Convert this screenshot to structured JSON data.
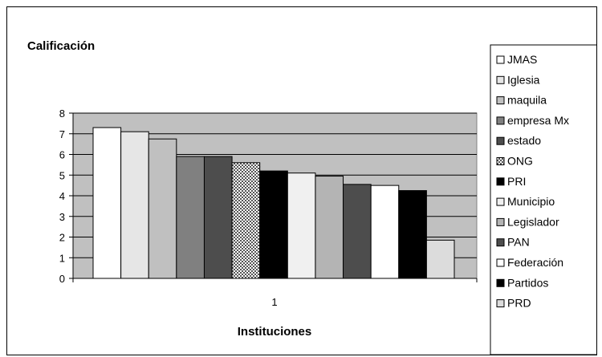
{
  "chart_data": {
    "type": "bar",
    "title": "Calificación",
    "xlabel": "Instituciones",
    "ylabel": "",
    "categories": [
      "1"
    ],
    "ylim": [
      0,
      8
    ],
    "yticks": [
      0,
      1,
      2,
      3,
      4,
      5,
      6,
      7,
      8
    ],
    "grid": true,
    "legend_position": "right",
    "series": [
      {
        "name": "JMAS",
        "values": [
          7.3
        ],
        "color": "#ffffff",
        "pattern": "solid"
      },
      {
        "name": "Iglesia",
        "values": [
          7.1
        ],
        "color": "#e6e6e6",
        "pattern": "solid"
      },
      {
        "name": "maquila",
        "values": [
          6.75
        ],
        "color": "#c0c0c0",
        "pattern": "solid"
      },
      {
        "name": "empresa Mx",
        "values": [
          5.9
        ],
        "color": "#808080",
        "pattern": "solid"
      },
      {
        "name": "estado",
        "values": [
          5.9
        ],
        "color": "#4d4d4d",
        "pattern": "solid"
      },
      {
        "name": "ONG",
        "values": [
          5.6
        ],
        "color": "#9a9a9a",
        "pattern": "checker"
      },
      {
        "name": "PRI",
        "values": [
          5.2
        ],
        "color": "#000000",
        "pattern": "solid"
      },
      {
        "name": "Municipio",
        "values": [
          5.1
        ],
        "color": "#f0f0f0",
        "pattern": "solid"
      },
      {
        "name": "Legislador",
        "values": [
          4.95
        ],
        "color": "#b4b4b4",
        "pattern": "solid"
      },
      {
        "name": "PAN",
        "values": [
          4.55
        ],
        "color": "#4d4d4d",
        "pattern": "solid"
      },
      {
        "name": "Federación",
        "values": [
          4.5
        ],
        "color": "#ffffff",
        "pattern": "solid"
      },
      {
        "name": "Partidos",
        "values": [
          4.25
        ],
        "color": "#000000",
        "pattern": "solid"
      },
      {
        "name": "PRD",
        "values": [
          1.85
        ],
        "color": "#dcdcdc",
        "pattern": "solid"
      }
    ],
    "plot_background": "#c0c0c0"
  }
}
